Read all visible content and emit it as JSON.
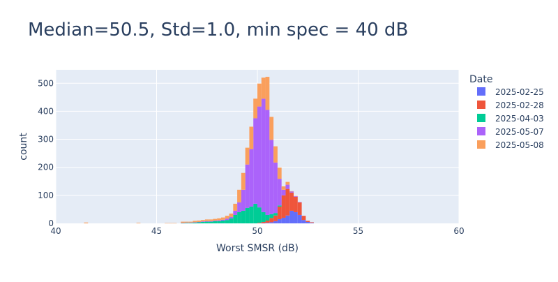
{
  "chart_data": {
    "type": "bar",
    "barmode": "stack",
    "title": "Median=50.5, Std=1.0, min spec = 40 dB",
    "xlabel": "Worst SMSR (dB)",
    "ylabel": "count",
    "xlim": [
      40,
      60
    ],
    "ylim": [
      0,
      548
    ],
    "bin_width": 0.2,
    "grid": true,
    "x_ticks": [
      40,
      45,
      50,
      55,
      60
    ],
    "y_ticks": [
      0,
      100,
      200,
      300,
      400,
      500
    ],
    "legend": {
      "title": "Date",
      "placement": "right"
    },
    "bins": [
      41.5,
      44.1,
      45.5,
      45.7,
      45.9,
      46.3,
      46.5,
      46.7,
      46.9,
      47.1,
      47.3,
      47.5,
      47.7,
      47.9,
      48.1,
      48.3,
      48.5,
      48.7,
      48.9,
      49.1,
      49.3,
      49.5,
      49.7,
      49.9,
      50.1,
      50.3,
      50.5,
      50.7,
      50.9,
      51.1,
      51.3,
      51.5,
      51.7,
      51.9,
      52.1,
      52.3,
      52.5,
      52.7,
      52.9
    ],
    "series": [
      {
        "name": "2025-02-25",
        "color": "#636efa",
        "values": [
          0,
          0,
          0,
          0,
          0,
          0,
          0,
          0,
          0,
          0,
          0,
          0,
          0,
          0,
          0,
          0,
          0,
          0,
          0,
          0,
          0,
          0,
          0,
          0,
          0,
          1,
          2,
          4,
          8,
          15,
          20,
          28,
          45,
          40,
          30,
          12,
          5,
          2,
          0
        ]
      },
      {
        "name": "2025-02-28",
        "color": "#ef553b",
        "values": [
          0,
          0,
          0,
          0,
          0,
          0,
          0,
          0,
          0,
          0,
          0,
          0,
          0,
          0,
          0,
          0,
          0,
          0,
          0,
          0,
          0,
          0,
          0,
          0,
          2,
          4,
          8,
          15,
          20,
          45,
          80,
          95,
          65,
          55,
          45,
          15,
          4,
          2,
          0
        ]
      },
      {
        "name": "2025-04-03",
        "color": "#00cc96",
        "values": [
          0,
          0,
          0,
          0,
          0,
          1,
          2,
          2,
          3,
          4,
          5,
          6,
          6,
          8,
          8,
          10,
          12,
          18,
          30,
          40,
          45,
          55,
          60,
          70,
          55,
          35,
          20,
          14,
          9,
          4,
          0,
          0,
          0,
          0,
          0,
          0,
          0,
          0,
          0
        ]
      },
      {
        "name": "2025-05-07",
        "color": "#ab63fa",
        "values": [
          0,
          0,
          0,
          0,
          0,
          1,
          1,
          1,
          1,
          1,
          2,
          2,
          2,
          2,
          3,
          3,
          5,
          5,
          15,
          35,
          75,
          155,
          205,
          305,
          360,
          405,
          375,
          265,
          180,
          95,
          20,
          15,
          4,
          2,
          1,
          0,
          0,
          0,
          0
        ]
      },
      {
        "name": "2025-05-08",
        "color": "#fa9f5c",
        "values": [
          3,
          2,
          1,
          1,
          1,
          4,
          3,
          3,
          5,
          5,
          5,
          6,
          6,
          6,
          7,
          8,
          10,
          12,
          25,
          45,
          60,
          60,
          80,
          70,
          82,
          75,
          118,
          82,
          58,
          40,
          12,
          10,
          1,
          1,
          0,
          0,
          0,
          0,
          0
        ]
      }
    ]
  }
}
